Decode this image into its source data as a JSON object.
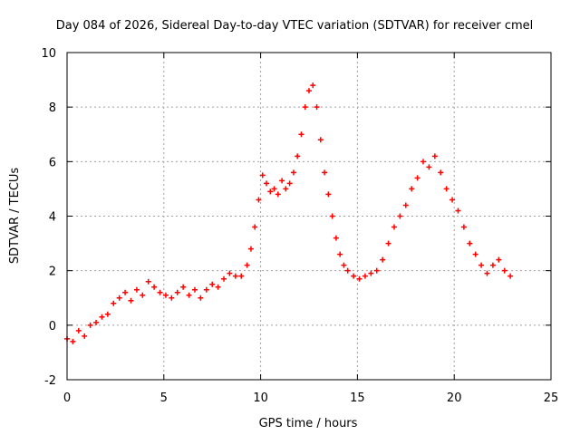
{
  "chart_data": {
    "type": "scatter",
    "title": "Day 084 of 2026, Sidereal Day-to-day VTEC variation (SDTVAR) for receiver cmel",
    "xlabel": "GPS time / hours",
    "ylabel": "SDTVAR / TECUs",
    "xlim": [
      0,
      25
    ],
    "ylim": [
      -2,
      10
    ],
    "xticks": [
      0,
      5,
      10,
      15,
      20,
      25
    ],
    "yticks": [
      -2,
      0,
      2,
      4,
      6,
      8,
      10
    ],
    "grid": true,
    "marker": "+",
    "color": "#ff0000",
    "series": [
      {
        "name": "SDTVAR",
        "x": [
          0.0,
          0.3,
          0.6,
          0.9,
          1.2,
          1.5,
          1.8,
          2.1,
          2.4,
          2.7,
          3.0,
          3.3,
          3.6,
          3.9,
          4.2,
          4.5,
          4.8,
          5.1,
          5.4,
          5.7,
          6.0,
          6.3,
          6.6,
          6.9,
          7.2,
          7.5,
          7.8,
          8.1,
          8.4,
          8.7,
          9.0,
          9.3,
          9.5,
          9.7,
          9.9,
          10.1,
          10.3,
          10.5,
          10.7,
          10.9,
          11.1,
          11.3,
          11.5,
          11.7,
          11.9,
          12.1,
          12.3,
          12.5,
          12.7,
          12.9,
          13.1,
          13.3,
          13.5,
          13.7,
          13.9,
          14.1,
          14.3,
          14.5,
          14.8,
          15.1,
          15.4,
          15.7,
          16.0,
          16.3,
          16.6,
          16.9,
          17.2,
          17.5,
          17.8,
          18.1,
          18.4,
          18.7,
          19.0,
          19.3,
          19.6,
          19.9,
          20.2,
          20.5,
          20.8,
          21.1,
          21.4,
          21.7,
          22.0,
          22.3,
          22.6,
          22.9
        ],
        "y": [
          -0.5,
          -0.6,
          -0.2,
          -0.4,
          0.0,
          0.1,
          0.3,
          0.4,
          0.8,
          1.0,
          1.2,
          0.9,
          1.3,
          1.1,
          1.6,
          1.4,
          1.2,
          1.1,
          1.0,
          1.2,
          1.4,
          1.1,
          1.3,
          1.0,
          1.3,
          1.5,
          1.4,
          1.7,
          1.9,
          1.8,
          1.8,
          2.2,
          2.8,
          3.6,
          4.6,
          5.5,
          5.2,
          4.9,
          5.0,
          4.8,
          5.3,
          5.0,
          5.2,
          5.6,
          6.2,
          7.0,
          8.0,
          8.6,
          8.8,
          8.0,
          6.8,
          5.6,
          4.8,
          4.0,
          3.2,
          2.6,
          2.2,
          2.0,
          1.8,
          1.7,
          1.8,
          1.9,
          2.0,
          2.4,
          3.0,
          3.6,
          4.0,
          4.4,
          5.0,
          5.4,
          6.0,
          5.8,
          6.2,
          5.6,
          5.0,
          4.6,
          4.2,
          3.6,
          3.0,
          2.6,
          2.2,
          1.9,
          2.2,
          2.4,
          2.0,
          1.8
        ]
      }
    ]
  }
}
